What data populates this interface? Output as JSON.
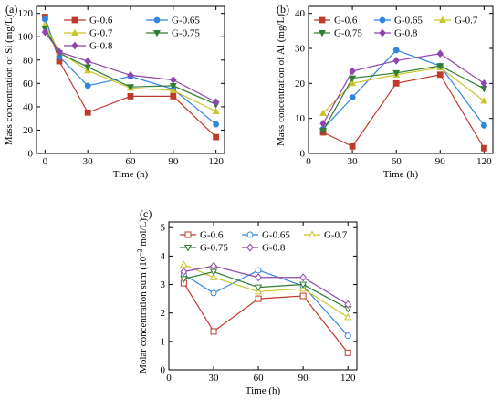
{
  "chart_data": [
    {
      "type": "line",
      "panel_label": "(a)",
      "xlabel": "Time (h)",
      "ylabel": "Mass concentration of Si (mg/L)",
      "x": [
        0,
        10,
        30,
        60,
        90,
        120
      ],
      "xticks": [
        0,
        30,
        60,
        90,
        120
      ],
      "yticks": [
        0,
        20,
        40,
        60,
        80,
        100,
        120
      ],
      "xlim": [
        -6,
        126
      ],
      "ylim": [
        0,
        126
      ],
      "legend_placement": "top-right",
      "legend_columns": 2,
      "marker_fill": "filled",
      "series": [
        {
          "name": "G-0.6",
          "color": "#c0392b",
          "marker": "square",
          "values": [
            117,
            79,
            35,
            49,
            49,
            14
          ]
        },
        {
          "name": "G-0.65",
          "color": "#2e86de",
          "marker": "circle",
          "values": [
            115,
            83,
            58,
            66,
            55,
            25
          ]
        },
        {
          "name": "G-0.7",
          "color": "#c9c42a",
          "marker": "triangle-up",
          "values": [
            110,
            87,
            71,
            56,
            54,
            36
          ]
        },
        {
          "name": "G-0.75",
          "color": "#2e7d32",
          "marker": "triangle-down",
          "values": [
            107,
            86,
            74,
            57,
            58,
            42
          ]
        },
        {
          "name": "G-0.8",
          "color": "#8e44ad",
          "marker": "diamond",
          "values": [
            104,
            87,
            79,
            67,
            63,
            44
          ]
        }
      ]
    },
    {
      "type": "line",
      "panel_label": "(b)",
      "xlabel": "Time (h)",
      "ylabel": "Mass concentration of Al (mg/L)",
      "x": [
        10,
        30,
        60,
        90,
        120
      ],
      "xticks": [
        0,
        30,
        60,
        90,
        120
      ],
      "yticks": [
        0,
        10,
        20,
        30,
        40
      ],
      "xlim": [
        0,
        126
      ],
      "ylim": [
        0,
        42
      ],
      "legend_placement": "top",
      "legend_columns": 3,
      "marker_fill": "filled",
      "series": [
        {
          "name": "G-0.6",
          "color": "#c0392b",
          "marker": "square",
          "values": [
            6,
            2,
            20,
            22.5,
            1.5
          ]
        },
        {
          "name": "G-0.65",
          "color": "#2e86de",
          "marker": "circle",
          "values": [
            7,
            16,
            29.5,
            25,
            8
          ]
        },
        {
          "name": "G-0.7",
          "color": "#c9c42a",
          "marker": "triangle-up",
          "values": [
            11.5,
            20,
            22.5,
            24.5,
            15
          ]
        },
        {
          "name": "G-0.75",
          "color": "#2e7d32",
          "marker": "triangle-down",
          "values": [
            6.5,
            21.5,
            23,
            25,
            18.5
          ]
        },
        {
          "name": "G-0.8",
          "color": "#8e44ad",
          "marker": "diamond",
          "values": [
            8.5,
            23.5,
            26.5,
            28.5,
            20
          ]
        }
      ]
    },
    {
      "type": "line",
      "panel_label": "(c)",
      "xlabel": "Time (h)",
      "ylabel_prefix": "Molar concentration sum (10",
      "ylabel_sup": "−3",
      "ylabel_suffix": " mol/L)",
      "x": [
        10,
        30,
        60,
        90,
        120
      ],
      "xticks": [
        0,
        30,
        60,
        90,
        120
      ],
      "yticks": [
        0,
        1,
        2,
        3,
        4,
        5
      ],
      "xlim": [
        0,
        126
      ],
      "ylim": [
        0,
        5.2
      ],
      "legend_placement": "top",
      "legend_columns": 3,
      "marker_fill": "hollow",
      "series": [
        {
          "name": "G-0.6",
          "color": "#c0392b",
          "marker": "square",
          "values": [
            3.05,
            1.35,
            2.5,
            2.6,
            0.6
          ]
        },
        {
          "name": "G-0.65",
          "color": "#2e86de",
          "marker": "circle",
          "values": [
            3.35,
            2.7,
            3.5,
            2.95,
            1.2
          ]
        },
        {
          "name": "G-0.7",
          "color": "#c9c42a",
          "marker": "triangle-up",
          "values": [
            3.7,
            3.25,
            2.75,
            2.85,
            1.85
          ]
        },
        {
          "name": "G-0.75",
          "color": "#2e7d32",
          "marker": "triangle-down",
          "values": [
            3.2,
            3.45,
            2.9,
            3.0,
            2.15
          ]
        },
        {
          "name": "G-0.8",
          "color": "#8e44ad",
          "marker": "diamond",
          "values": [
            3.45,
            3.65,
            3.25,
            3.25,
            2.3
          ]
        }
      ]
    }
  ]
}
